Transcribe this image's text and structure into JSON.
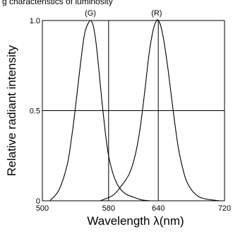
{
  "header": {
    "title_partial": "g characteristics of luminosity"
  },
  "chart_data": {
    "type": "line",
    "xlabel": "Wavelength λ(nm)",
    "ylabel": "Relative radiant intensity",
    "xlim": [
      500,
      720
    ],
    "ylim": [
      0,
      1.0
    ],
    "x_ticks": [
      500,
      580,
      640,
      720
    ],
    "y_ticks": [
      0,
      0.5,
      1.0
    ],
    "x_tick_labels": [
      "500",
      "580",
      "640",
      "720"
    ],
    "y_tick_labels": [
      "0",
      "0.5",
      "1.0"
    ],
    "grid": "reference lines at y=0.5 and at the two peak wavelengths",
    "series": [
      {
        "name": "(G)",
        "x": [
          509,
          520,
          530,
          535,
          540,
          545,
          550,
          553,
          556,
          558,
          560,
          562,
          565,
          568,
          572,
          576,
          580,
          586,
          592,
          600,
          610,
          620,
          630
        ],
        "y": [
          0,
          0.06,
          0.2,
          0.34,
          0.52,
          0.72,
          0.9,
          0.96,
          0.99,
          1.0,
          0.99,
          0.96,
          0.87,
          0.74,
          0.55,
          0.38,
          0.25,
          0.14,
          0.08,
          0.04,
          0.02,
          0.005,
          0
        ]
      },
      {
        "name": "(R)",
        "x": [
          570,
          585,
          595,
          605,
          612,
          618,
          624,
          629,
          634,
          638,
          640,
          643,
          647,
          652,
          658,
          664,
          670,
          675,
          682,
          690,
          700,
          710,
          715
        ],
        "y": [
          0,
          0.03,
          0.08,
          0.15,
          0.25,
          0.4,
          0.62,
          0.82,
          0.95,
          1.0,
          1.0,
          0.97,
          0.88,
          0.72,
          0.5,
          0.3,
          0.17,
          0.1,
          0.05,
          0.02,
          0.008,
          0.002,
          0
        ]
      }
    ]
  }
}
